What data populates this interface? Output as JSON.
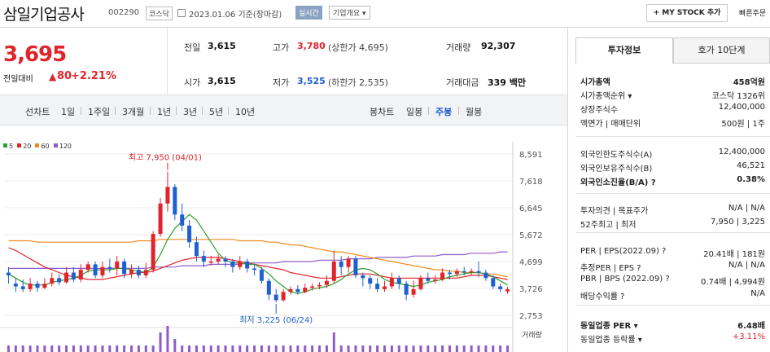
{
  "header": {
    "name": "삼일기업공사",
    "code": "002290",
    "market": "코스닥",
    "date": "2023.01.06 기준(장마감)",
    "realtime": "실시간",
    "company": "기업개요 ▾",
    "mystock": "+ MY STOCK 추가",
    "quick": "빠른주문"
  },
  "quote": {
    "price": "3,695",
    "chg_label": "전일대비",
    "chg_arrow": "▲",
    "chg": "80",
    "chg_pct": "+2.21%",
    "prev_label": "전일",
    "prev": "3,615",
    "high_label": "고가",
    "high": "3,780",
    "upper": "(상한가 4,695)",
    "vol_label": "거래량",
    "vol": "92,307",
    "open_label": "시가",
    "open": "3,615",
    "low_label": "저가",
    "low": "3,525",
    "lower": "(하한가 2,535)",
    "amt_label": "거래대금",
    "amt": "339 백만"
  },
  "chart_tabs": {
    "line_label": "선차트",
    "line": [
      "1일",
      "1주일",
      "3개월",
      "1년",
      "3년",
      "5년",
      "10년"
    ],
    "candle_label": "봉차트",
    "candle": [
      "일봉",
      "주봉",
      "월봉"
    ],
    "candle_active": "주봉"
  },
  "chart_data": {
    "type": "candlestick",
    "ma_legend": [
      {
        "name": "5",
        "color": "#2ca02c"
      },
      {
        "name": "20",
        "color": "#e0242b"
      },
      {
        "name": "60",
        "color": "#f08a20"
      },
      {
        "name": "120",
        "color": "#8e5cc9"
      }
    ],
    "yticks": [
      "8,591",
      "7,618",
      "6,645",
      "5,672",
      "4,699",
      "3,726",
      "2,753"
    ],
    "yrange": [
      2753,
      8591
    ],
    "max_label": "최고 7,950 (04/01)",
    "min_label": "최저 3,225 (06/24)",
    "vol_label": "거래량",
    "candles": [
      [
        4300,
        4200,
        4500,
        3900
      ],
      [
        3900,
        3800,
        4100,
        3600
      ],
      [
        3800,
        3700,
        4050,
        3600
      ],
      [
        3700,
        3900,
        4100,
        3600
      ],
      [
        3900,
        3750,
        4000,
        3600
      ],
      [
        3750,
        3900,
        4100,
        3700
      ],
      [
        3900,
        4100,
        4300,
        3800
      ],
      [
        4100,
        3950,
        4250,
        3850
      ],
      [
        3950,
        4300,
        4500,
        3900
      ],
      [
        4300,
        4050,
        4500,
        3950
      ],
      [
        4050,
        4400,
        4600,
        3950
      ],
      [
        4400,
        4600,
        4700,
        4300
      ],
      [
        4600,
        4200,
        4700,
        4100
      ],
      [
        4200,
        4500,
        4700,
        4100
      ],
      [
        4500,
        4450,
        4800,
        4300
      ],
      [
        4450,
        4700,
        4900,
        4200
      ],
      [
        4700,
        4250,
        4800,
        4100
      ],
      [
        4250,
        4400,
        4600,
        4100
      ],
      [
        4400,
        4200,
        4550,
        4100
      ],
      [
        4200,
        4400,
        4650,
        4100
      ],
      [
        4400,
        5700,
        5800,
        4300
      ],
      [
        5700,
        6800,
        7000,
        5600
      ],
      [
        6800,
        7400,
        7950,
        6500
      ],
      [
        7400,
        6400,
        7500,
        6200
      ],
      [
        6400,
        6000,
        6800,
        5800
      ],
      [
        6000,
        5400,
        6200,
        5200
      ],
      [
        5400,
        4900,
        5600,
        4700
      ],
      [
        4900,
        4700,
        5100,
        4500
      ],
      [
        4700,
        4700,
        4900,
        4550
      ],
      [
        4700,
        4800,
        4950,
        4600
      ],
      [
        4800,
        4700,
        4900,
        4500
      ],
      [
        4700,
        4500,
        4800,
        4300
      ],
      [
        4500,
        4700,
        4900,
        4400
      ],
      [
        4700,
        4450,
        4800,
        4300
      ],
      [
        4450,
        4400,
        4600,
        4200
      ],
      [
        4400,
        4000,
        4500,
        3900
      ],
      [
        4000,
        3500,
        4100,
        3300
      ],
      [
        3500,
        3300,
        3700,
        3225
      ],
      [
        3300,
        3600,
        3700,
        3250
      ],
      [
        3600,
        3700,
        3800,
        3500
      ],
      [
        3700,
        3600,
        3850,
        3500
      ],
      [
        3600,
        3750,
        3900,
        3550
      ],
      [
        3750,
        3800,
        3900,
        3650
      ],
      [
        3800,
        3850,
        3950,
        3700
      ],
      [
        3850,
        4000,
        4200,
        3750
      ],
      [
        4000,
        4700,
        5100,
        3900
      ],
      [
        4700,
        4500,
        4900,
        4200
      ],
      [
        4500,
        4800,
        4900,
        4300
      ],
      [
        4800,
        4200,
        4900,
        4100
      ],
      [
        4200,
        4100,
        4300,
        3800
      ],
      [
        4100,
        3900,
        4200,
        3700
      ],
      [
        3900,
        3700,
        4100,
        3600
      ],
      [
        3700,
        3800,
        4000,
        3600
      ],
      [
        3800,
        4100,
        4300,
        3700
      ],
      [
        4100,
        3900,
        4200,
        3700
      ],
      [
        3900,
        3500,
        4000,
        3300
      ],
      [
        3500,
        3700,
        4000,
        3400
      ],
      [
        3700,
        4100,
        4200,
        3650
      ],
      [
        4100,
        4000,
        4300,
        3900
      ],
      [
        4000,
        4050,
        4200,
        3900
      ],
      [
        4050,
        4300,
        4450,
        4000
      ],
      [
        4300,
        4250,
        4400,
        4050
      ],
      [
        4250,
        4350,
        4450,
        4150
      ],
      [
        4350,
        4300,
        4500,
        4200
      ],
      [
        4300,
        4350,
        4450,
        4200
      ],
      [
        4350,
        4300,
        4700,
        4150
      ],
      [
        4300,
        4100,
        4400,
        4000
      ],
      [
        4100,
        3800,
        4200,
        3700
      ],
      [
        3800,
        3700,
        3900,
        3600
      ],
      [
        3615,
        3695,
        3780,
        3525
      ]
    ],
    "ma5": [
      4250,
      4100,
      3950,
      3850,
      3850,
      3850,
      3950,
      4000,
      4050,
      4100,
      4200,
      4350,
      4400,
      4400,
      4400,
      4450,
      4450,
      4400,
      4350,
      4300,
      4500,
      4950,
      5500,
      5900,
      6150,
      6400,
      6200,
      5800,
      5400,
      5000,
      4750,
      4650,
      4650,
      4600,
      4600,
      4450,
      4250,
      4000,
      3800,
      3600,
      3550,
      3600,
      3700,
      3750,
      3800,
      3900,
      4050,
      4250,
      4400,
      4450,
      4400,
      4250,
      4050,
      3950,
      3900,
      3850,
      3800,
      3850,
      3950,
      4000,
      4050,
      4150,
      4200,
      4250,
      4300,
      4300,
      4250,
      4150,
      4000,
      3850
    ],
    "ma20": [
      5200,
      5100,
      4950,
      4800,
      4650,
      4500,
      4400,
      4300,
      4200,
      4150,
      4100,
      4050,
      4050,
      4050,
      4100,
      4150,
      4200,
      4250,
      4300,
      4300,
      4350,
      4450,
      4550,
      4650,
      4750,
      4800,
      4850,
      4850,
      4850,
      4850,
      4800,
      4750,
      4700,
      4650,
      4600,
      4550,
      4500,
      4450,
      4400,
      4300,
      4250,
      4200,
      4150,
      4100,
      4100,
      4100,
      4150,
      4200,
      4250,
      4250,
      4250,
      4200,
      4150,
      4100,
      4100,
      4100,
      4100,
      4100,
      4100,
      4100,
      4100,
      4100,
      4100,
      4150,
      4200,
      4200,
      4200,
      4150,
      4100,
      4050
    ],
    "ma60": [
      5450,
      5450,
      5450,
      5450,
      5400,
      5400,
      5400,
      5400,
      5400,
      5400,
      5400,
      5400,
      5400,
      5400,
      5400,
      5400,
      5400,
      5400,
      5450,
      5450,
      5450,
      5500,
      5500,
      5500,
      5500,
      5500,
      5500,
      5500,
      5500,
      5500,
      5500,
      5500,
      5450,
      5450,
      5450,
      5450,
      5400,
      5400,
      5350,
      5300,
      5300,
      5250,
      5200,
      5150,
      5100,
      5050,
      5050,
      5000,
      4950,
      4900,
      4850,
      4800,
      4750,
      4700,
      4650,
      4600,
      4550,
      4500,
      4450,
      4400,
      4400,
      4350,
      4350,
      4300,
      4300,
      4300,
      4250,
      4250,
      4200,
      4150
    ],
    "ma120": [
      4450,
      4450,
      4450,
      4450,
      4450,
      4450,
      4450,
      4450,
      4450,
      4450,
      4450,
      4450,
      4450,
      4450,
      4450,
      4450,
      4450,
      4450,
      4450,
      4450,
      4500,
      4500,
      4500,
      4500,
      4550,
      4550,
      4550,
      4550,
      4600,
      4600,
      4600,
      4600,
      4600,
      4650,
      4650,
      4650,
      4650,
      4650,
      4700,
      4700,
      4700,
      4700,
      4700,
      4750,
      4750,
      4750,
      4750,
      4800,
      4800,
      4800,
      4800,
      4850,
      4850,
      4850,
      4850,
      4850,
      4900,
      4900,
      4900,
      4900,
      4950,
      4950,
      4950,
      4950,
      5000,
      5000,
      5000,
      5000,
      5050,
      5050
    ],
    "volume": [
      1,
      1,
      1,
      1,
      1,
      1,
      1,
      1,
      1,
      1,
      1,
      1,
      1,
      1,
      1,
      1,
      1,
      1,
      1,
      1,
      1,
      3,
      4,
      2,
      1,
      1,
      1,
      1,
      1,
      1,
      1,
      1,
      1,
      1,
      1,
      1,
      1,
      1,
      1,
      1,
      1,
      1,
      1,
      1,
      1,
      3,
      1,
      1,
      1,
      1,
      1,
      1,
      1,
      1,
      1,
      1,
      1,
      1,
      1,
      1,
      1,
      1,
      1,
      1,
      1,
      1,
      1,
      1,
      1,
      1
    ]
  },
  "right": {
    "tab1": "투자정보",
    "tab2": "호가 10단계",
    "rows": [
      {
        "l": "시가총액",
        "v": "458억원",
        "bold": true
      },
      {
        "l": "시가총액순위 ▾",
        "v": "코스닥 1326위"
      },
      {
        "l": "상장주식수",
        "v": "12,400,000"
      },
      {
        "l": "액면가 | 매매단위",
        "v": "500원 | 1주"
      },
      {
        "l": "외국인한도주식수(A)",
        "v": "12,400,000"
      },
      {
        "l": "외국인보유주식수(B)",
        "v": "46,521"
      },
      {
        "l": "외국인소진율(B/A) ?",
        "v": "0.38%",
        "bold": true
      },
      {
        "l": "투자의견 | 목표주가",
        "v": "N/A | N/A"
      },
      {
        "l": "52주최고 | 최저",
        "v": "7,950 | 3,225"
      },
      {
        "l": "PER | EPS(2022.09) ?",
        "v": "20.41배 | 181원"
      },
      {
        "l": "추정PER | EPS ?",
        "v": "N/A | N/A"
      },
      {
        "l": "PBR | BPS (2022.09) ?",
        "v": "0.74배 | 4,994원"
      },
      {
        "l": "배당수익률 ?",
        "v": "N/A"
      },
      {
        "l": "동일업종 PER ▾",
        "v": "6.48배",
        "bold": true
      },
      {
        "l": "동일업종 등락률 ▾",
        "v": "+3.11%",
        "red": true
      }
    ]
  }
}
